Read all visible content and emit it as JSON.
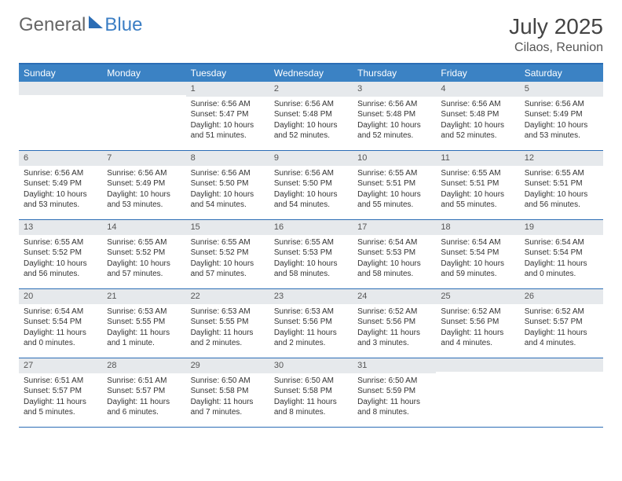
{
  "brand": {
    "left": "General",
    "right": "Blue"
  },
  "title": "July 2025",
  "location": "Cilaos, Reunion",
  "weekday_header_bg": "#3b82c4",
  "accent": "#2b6db5",
  "weekdays": [
    "Sunday",
    "Monday",
    "Tuesday",
    "Wednesday",
    "Thursday",
    "Friday",
    "Saturday"
  ],
  "first_weekday_index": 2,
  "days": [
    {
      "n": 1,
      "sunrise": "6:56 AM",
      "sunset": "5:47 PM",
      "daylight": "10 hours and 51 minutes."
    },
    {
      "n": 2,
      "sunrise": "6:56 AM",
      "sunset": "5:48 PM",
      "daylight": "10 hours and 52 minutes."
    },
    {
      "n": 3,
      "sunrise": "6:56 AM",
      "sunset": "5:48 PM",
      "daylight": "10 hours and 52 minutes."
    },
    {
      "n": 4,
      "sunrise": "6:56 AM",
      "sunset": "5:48 PM",
      "daylight": "10 hours and 52 minutes."
    },
    {
      "n": 5,
      "sunrise": "6:56 AM",
      "sunset": "5:49 PM",
      "daylight": "10 hours and 53 minutes."
    },
    {
      "n": 6,
      "sunrise": "6:56 AM",
      "sunset": "5:49 PM",
      "daylight": "10 hours and 53 minutes."
    },
    {
      "n": 7,
      "sunrise": "6:56 AM",
      "sunset": "5:49 PM",
      "daylight": "10 hours and 53 minutes."
    },
    {
      "n": 8,
      "sunrise": "6:56 AM",
      "sunset": "5:50 PM",
      "daylight": "10 hours and 54 minutes."
    },
    {
      "n": 9,
      "sunrise": "6:56 AM",
      "sunset": "5:50 PM",
      "daylight": "10 hours and 54 minutes."
    },
    {
      "n": 10,
      "sunrise": "6:55 AM",
      "sunset": "5:51 PM",
      "daylight": "10 hours and 55 minutes."
    },
    {
      "n": 11,
      "sunrise": "6:55 AM",
      "sunset": "5:51 PM",
      "daylight": "10 hours and 55 minutes."
    },
    {
      "n": 12,
      "sunrise": "6:55 AM",
      "sunset": "5:51 PM",
      "daylight": "10 hours and 56 minutes."
    },
    {
      "n": 13,
      "sunrise": "6:55 AM",
      "sunset": "5:52 PM",
      "daylight": "10 hours and 56 minutes."
    },
    {
      "n": 14,
      "sunrise": "6:55 AM",
      "sunset": "5:52 PM",
      "daylight": "10 hours and 57 minutes."
    },
    {
      "n": 15,
      "sunrise": "6:55 AM",
      "sunset": "5:52 PM",
      "daylight": "10 hours and 57 minutes."
    },
    {
      "n": 16,
      "sunrise": "6:55 AM",
      "sunset": "5:53 PM",
      "daylight": "10 hours and 58 minutes."
    },
    {
      "n": 17,
      "sunrise": "6:54 AM",
      "sunset": "5:53 PM",
      "daylight": "10 hours and 58 minutes."
    },
    {
      "n": 18,
      "sunrise": "6:54 AM",
      "sunset": "5:54 PM",
      "daylight": "10 hours and 59 minutes."
    },
    {
      "n": 19,
      "sunrise": "6:54 AM",
      "sunset": "5:54 PM",
      "daylight": "11 hours and 0 minutes."
    },
    {
      "n": 20,
      "sunrise": "6:54 AM",
      "sunset": "5:54 PM",
      "daylight": "11 hours and 0 minutes."
    },
    {
      "n": 21,
      "sunrise": "6:53 AM",
      "sunset": "5:55 PM",
      "daylight": "11 hours and 1 minute."
    },
    {
      "n": 22,
      "sunrise": "6:53 AM",
      "sunset": "5:55 PM",
      "daylight": "11 hours and 2 minutes."
    },
    {
      "n": 23,
      "sunrise": "6:53 AM",
      "sunset": "5:56 PM",
      "daylight": "11 hours and 2 minutes."
    },
    {
      "n": 24,
      "sunrise": "6:52 AM",
      "sunset": "5:56 PM",
      "daylight": "11 hours and 3 minutes."
    },
    {
      "n": 25,
      "sunrise": "6:52 AM",
      "sunset": "5:56 PM",
      "daylight": "11 hours and 4 minutes."
    },
    {
      "n": 26,
      "sunrise": "6:52 AM",
      "sunset": "5:57 PM",
      "daylight": "11 hours and 4 minutes."
    },
    {
      "n": 27,
      "sunrise": "6:51 AM",
      "sunset": "5:57 PM",
      "daylight": "11 hours and 5 minutes."
    },
    {
      "n": 28,
      "sunrise": "6:51 AM",
      "sunset": "5:57 PM",
      "daylight": "11 hours and 6 minutes."
    },
    {
      "n": 29,
      "sunrise": "6:50 AM",
      "sunset": "5:58 PM",
      "daylight": "11 hours and 7 minutes."
    },
    {
      "n": 30,
      "sunrise": "6:50 AM",
      "sunset": "5:58 PM",
      "daylight": "11 hours and 8 minutes."
    },
    {
      "n": 31,
      "sunrise": "6:50 AM",
      "sunset": "5:59 PM",
      "daylight": "11 hours and 8 minutes."
    }
  ],
  "labels": {
    "sunrise_prefix": "Sunrise: ",
    "sunset_prefix": "Sunset: ",
    "daylight_prefix": "Daylight: "
  },
  "style": {
    "page_bg": "#ffffff",
    "text_color": "#333333",
    "daynum_bg": "#e6e9ec",
    "daynum_color": "#555555",
    "cell_font_size": 10,
    "header_font_size": 12,
    "title_font_size": 28,
    "location_font_size": 16
  }
}
